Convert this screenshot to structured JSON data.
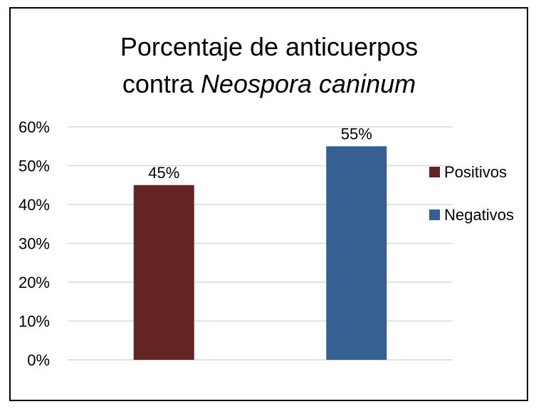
{
  "chart_data": {
    "type": "bar",
    "title_line1": "Porcentaje de anticuerpos",
    "title_line2_prefix": "contra ",
    "title_line2_italic": "Neospora caninum",
    "categories": [
      "Positivos",
      "Negativos"
    ],
    "values": [
      45,
      55
    ],
    "data_labels": [
      "45%",
      "55%"
    ],
    "colors": [
      "#632523",
      "#376092"
    ],
    "ylim": [
      0,
      60
    ],
    "yticks": [
      "0%",
      "10%",
      "20%",
      "30%",
      "40%",
      "50%",
      "60%"
    ],
    "grid": true,
    "legend_placement": "right",
    "legend": [
      {
        "label": "Positivos",
        "color": "#632523"
      },
      {
        "label": "Negativos",
        "color": "#376092"
      }
    ]
  }
}
